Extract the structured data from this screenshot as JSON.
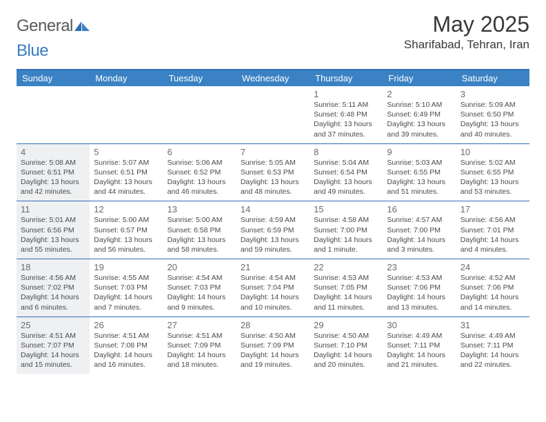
{
  "brand": {
    "part1": "General",
    "part2": "Blue"
  },
  "title": "May 2025",
  "location": "Sharifabad, Tehran, Iran",
  "colors": {
    "header_bar": "#3a82c4",
    "border": "#2f6fb3",
    "shade": "#eef0f2",
    "text": "#4a4a4a",
    "page_bg": "#ffffff"
  },
  "weekdays": [
    "Sunday",
    "Monday",
    "Tuesday",
    "Wednesday",
    "Thursday",
    "Friday",
    "Saturday"
  ],
  "weeks": [
    [
      null,
      null,
      null,
      null,
      {
        "d": "1",
        "sr": "Sunrise: 5:11 AM",
        "ss": "Sunset: 6:48 PM",
        "dl1": "Daylight: 13 hours",
        "dl2": "and 37 minutes.",
        "shade": false
      },
      {
        "d": "2",
        "sr": "Sunrise: 5:10 AM",
        "ss": "Sunset: 6:49 PM",
        "dl1": "Daylight: 13 hours",
        "dl2": "and 39 minutes.",
        "shade": false
      },
      {
        "d": "3",
        "sr": "Sunrise: 5:09 AM",
        "ss": "Sunset: 6:50 PM",
        "dl1": "Daylight: 13 hours",
        "dl2": "and 40 minutes.",
        "shade": false
      }
    ],
    [
      {
        "d": "4",
        "sr": "Sunrise: 5:08 AM",
        "ss": "Sunset: 6:51 PM",
        "dl1": "Daylight: 13 hours",
        "dl2": "and 42 minutes.",
        "shade": true
      },
      {
        "d": "5",
        "sr": "Sunrise: 5:07 AM",
        "ss": "Sunset: 6:51 PM",
        "dl1": "Daylight: 13 hours",
        "dl2": "and 44 minutes.",
        "shade": false
      },
      {
        "d": "6",
        "sr": "Sunrise: 5:06 AM",
        "ss": "Sunset: 6:52 PM",
        "dl1": "Daylight: 13 hours",
        "dl2": "and 46 minutes.",
        "shade": false
      },
      {
        "d": "7",
        "sr": "Sunrise: 5:05 AM",
        "ss": "Sunset: 6:53 PM",
        "dl1": "Daylight: 13 hours",
        "dl2": "and 48 minutes.",
        "shade": false
      },
      {
        "d": "8",
        "sr": "Sunrise: 5:04 AM",
        "ss": "Sunset: 6:54 PM",
        "dl1": "Daylight: 13 hours",
        "dl2": "and 49 minutes.",
        "shade": false
      },
      {
        "d": "9",
        "sr": "Sunrise: 5:03 AM",
        "ss": "Sunset: 6:55 PM",
        "dl1": "Daylight: 13 hours",
        "dl2": "and 51 minutes.",
        "shade": false
      },
      {
        "d": "10",
        "sr": "Sunrise: 5:02 AM",
        "ss": "Sunset: 6:55 PM",
        "dl1": "Daylight: 13 hours",
        "dl2": "and 53 minutes.",
        "shade": false
      }
    ],
    [
      {
        "d": "11",
        "sr": "Sunrise: 5:01 AM",
        "ss": "Sunset: 6:56 PM",
        "dl1": "Daylight: 13 hours",
        "dl2": "and 55 minutes.",
        "shade": true
      },
      {
        "d": "12",
        "sr": "Sunrise: 5:00 AM",
        "ss": "Sunset: 6:57 PM",
        "dl1": "Daylight: 13 hours",
        "dl2": "and 56 minutes.",
        "shade": false
      },
      {
        "d": "13",
        "sr": "Sunrise: 5:00 AM",
        "ss": "Sunset: 6:58 PM",
        "dl1": "Daylight: 13 hours",
        "dl2": "and 58 minutes.",
        "shade": false
      },
      {
        "d": "14",
        "sr": "Sunrise: 4:59 AM",
        "ss": "Sunset: 6:59 PM",
        "dl1": "Daylight: 13 hours",
        "dl2": "and 59 minutes.",
        "shade": false
      },
      {
        "d": "15",
        "sr": "Sunrise: 4:58 AM",
        "ss": "Sunset: 7:00 PM",
        "dl1": "Daylight: 14 hours",
        "dl2": "and 1 minute.",
        "shade": false
      },
      {
        "d": "16",
        "sr": "Sunrise: 4:57 AM",
        "ss": "Sunset: 7:00 PM",
        "dl1": "Daylight: 14 hours",
        "dl2": "and 3 minutes.",
        "shade": false
      },
      {
        "d": "17",
        "sr": "Sunrise: 4:56 AM",
        "ss": "Sunset: 7:01 PM",
        "dl1": "Daylight: 14 hours",
        "dl2": "and 4 minutes.",
        "shade": false
      }
    ],
    [
      {
        "d": "18",
        "sr": "Sunrise: 4:56 AM",
        "ss": "Sunset: 7:02 PM",
        "dl1": "Daylight: 14 hours",
        "dl2": "and 6 minutes.",
        "shade": true
      },
      {
        "d": "19",
        "sr": "Sunrise: 4:55 AM",
        "ss": "Sunset: 7:03 PM",
        "dl1": "Daylight: 14 hours",
        "dl2": "and 7 minutes.",
        "shade": false
      },
      {
        "d": "20",
        "sr": "Sunrise: 4:54 AM",
        "ss": "Sunset: 7:03 PM",
        "dl1": "Daylight: 14 hours",
        "dl2": "and 9 minutes.",
        "shade": false
      },
      {
        "d": "21",
        "sr": "Sunrise: 4:54 AM",
        "ss": "Sunset: 7:04 PM",
        "dl1": "Daylight: 14 hours",
        "dl2": "and 10 minutes.",
        "shade": false
      },
      {
        "d": "22",
        "sr": "Sunrise: 4:53 AM",
        "ss": "Sunset: 7:05 PM",
        "dl1": "Daylight: 14 hours",
        "dl2": "and 11 minutes.",
        "shade": false
      },
      {
        "d": "23",
        "sr": "Sunrise: 4:53 AM",
        "ss": "Sunset: 7:06 PM",
        "dl1": "Daylight: 14 hours",
        "dl2": "and 13 minutes.",
        "shade": false
      },
      {
        "d": "24",
        "sr": "Sunrise: 4:52 AM",
        "ss": "Sunset: 7:06 PM",
        "dl1": "Daylight: 14 hours",
        "dl2": "and 14 minutes.",
        "shade": false
      }
    ],
    [
      {
        "d": "25",
        "sr": "Sunrise: 4:51 AM",
        "ss": "Sunset: 7:07 PM",
        "dl1": "Daylight: 14 hours",
        "dl2": "and 15 minutes.",
        "shade": true
      },
      {
        "d": "26",
        "sr": "Sunrise: 4:51 AM",
        "ss": "Sunset: 7:08 PM",
        "dl1": "Daylight: 14 hours",
        "dl2": "and 16 minutes.",
        "shade": false
      },
      {
        "d": "27",
        "sr": "Sunrise: 4:51 AM",
        "ss": "Sunset: 7:09 PM",
        "dl1": "Daylight: 14 hours",
        "dl2": "and 18 minutes.",
        "shade": false
      },
      {
        "d": "28",
        "sr": "Sunrise: 4:50 AM",
        "ss": "Sunset: 7:09 PM",
        "dl1": "Daylight: 14 hours",
        "dl2": "and 19 minutes.",
        "shade": false
      },
      {
        "d": "29",
        "sr": "Sunrise: 4:50 AM",
        "ss": "Sunset: 7:10 PM",
        "dl1": "Daylight: 14 hours",
        "dl2": "and 20 minutes.",
        "shade": false
      },
      {
        "d": "30",
        "sr": "Sunrise: 4:49 AM",
        "ss": "Sunset: 7:11 PM",
        "dl1": "Daylight: 14 hours",
        "dl2": "and 21 minutes.",
        "shade": false
      },
      {
        "d": "31",
        "sr": "Sunrise: 4:49 AM",
        "ss": "Sunset: 7:11 PM",
        "dl1": "Daylight: 14 hours",
        "dl2": "and 22 minutes.",
        "shade": false
      }
    ]
  ]
}
